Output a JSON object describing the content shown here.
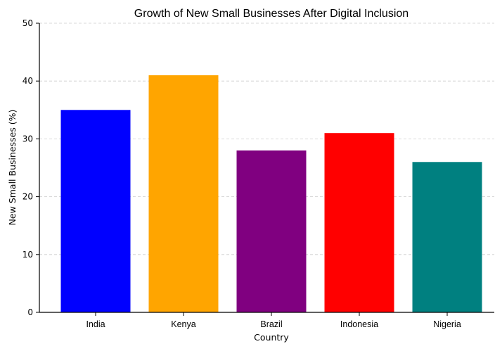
{
  "chart_data": {
    "type": "bar",
    "title": "Growth of New Small Businesses After Digital Inclusion",
    "xlabel": "Country",
    "ylabel": "New Small Businesses (%)",
    "categories": [
      "India",
      "Kenya",
      "Brazil",
      "Indonesia",
      "Nigeria"
    ],
    "values": [
      35,
      41,
      28,
      31,
      26
    ],
    "colors": [
      "#0000ff",
      "#ffa500",
      "#800080",
      "#ff0000",
      "#008080"
    ],
    "ylim": [
      0,
      50
    ],
    "yticks": [
      "0",
      "10",
      "20",
      "30",
      "40",
      "50"
    ],
    "grid": "y-dashed"
  }
}
